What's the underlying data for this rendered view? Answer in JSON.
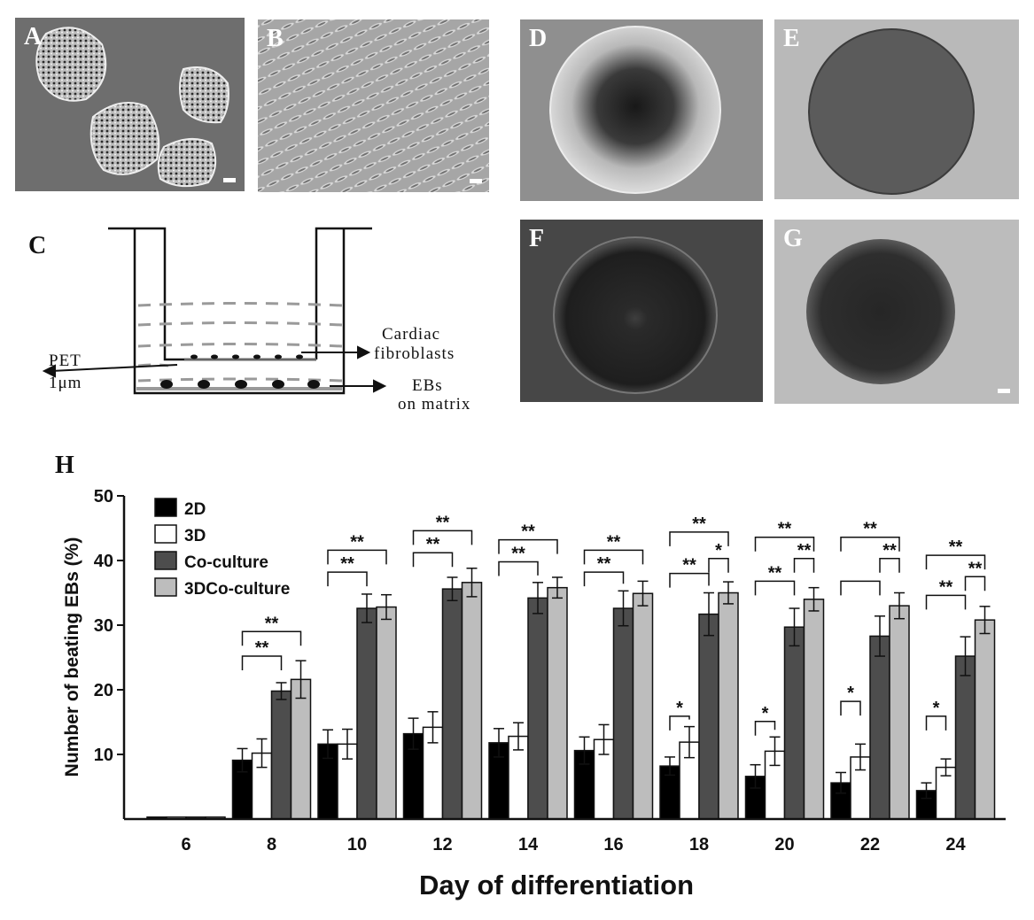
{
  "panels": {
    "a": {
      "label": "A"
    },
    "b": {
      "label": "B"
    },
    "c": {
      "label": "C"
    },
    "d": {
      "label": "D"
    },
    "e": {
      "label": "E"
    },
    "f": {
      "label": "F"
    },
    "g": {
      "label": "G"
    },
    "h": {
      "label": "H"
    }
  },
  "diagram": {
    "pet_label": "PET",
    "pore_label": "1μm",
    "fibroblast_line1": "Cardiac",
    "fibroblast_line2": "fibroblasts",
    "ebs_line1": "EBs",
    "ebs_line2": "on matrix"
  },
  "chart_data": {
    "type": "bar",
    "xlabel": "Day of differentiation",
    "ylabel": "Number of beating EBs (%)",
    "ylim": [
      0,
      50
    ],
    "yticks": [
      10,
      20,
      30,
      40,
      50
    ],
    "categories": [
      "6",
      "8",
      "10",
      "12",
      "14",
      "16",
      "18",
      "20",
      "22",
      "24"
    ],
    "legend_position": "top-left",
    "series": [
      {
        "name": "2D",
        "color": "#000000",
        "values": [
          0.3,
          9.1,
          11.6,
          13.2,
          11.8,
          10.6,
          8.2,
          6.6,
          5.6,
          4.4
        ],
        "errors": [
          0,
          1.8,
          2.2,
          2.4,
          2.2,
          2.1,
          1.4,
          1.8,
          1.6,
          1.2
        ]
      },
      {
        "name": "3D",
        "color": "#ffffff",
        "values": [
          0.3,
          10.2,
          11.6,
          14.2,
          12.8,
          12.3,
          11.9,
          10.5,
          9.6,
          8.0
        ],
        "errors": [
          0,
          2.2,
          2.3,
          2.4,
          2.1,
          2.3,
          2.4,
          2.2,
          2.0,
          1.3
        ]
      },
      {
        "name": "Co-culture",
        "color": "#4d4d4d",
        "values": [
          0.3,
          19.8,
          32.6,
          35.6,
          34.2,
          32.6,
          31.7,
          29.7,
          28.3,
          25.2
        ],
        "errors": [
          0,
          1.3,
          2.2,
          1.8,
          2.4,
          2.7,
          3.3,
          2.9,
          3.1,
          3.0
        ]
      },
      {
        "name": "3DCo-culture",
        "color": "#bdbdbd",
        "values": [
          0.3,
          21.6,
          32.8,
          36.6,
          35.8,
          34.9,
          35.0,
          34.0,
          33.0,
          30.8
        ],
        "errors": [
          0,
          2.9,
          1.9,
          2.2,
          1.6,
          1.9,
          1.7,
          1.8,
          2.0,
          2.1
        ]
      }
    ],
    "significance": [
      {
        "day": "8",
        "from": 0,
        "to": 2,
        "label": "**",
        "level": 25.2
      },
      {
        "day": "8",
        "from": 0,
        "to": 3,
        "label": "**",
        "level": 29.0
      },
      {
        "day": "10",
        "from": 0,
        "to": 2,
        "label": "**",
        "level": 38.2
      },
      {
        "day": "10",
        "from": 0,
        "to": 3,
        "label": "**",
        "level": 41.6
      },
      {
        "day": "12",
        "from": 0,
        "to": 2,
        "label": "**",
        "level": 41.2
      },
      {
        "day": "12",
        "from": 0,
        "to": 3,
        "label": "**",
        "level": 44.6
      },
      {
        "day": "14",
        "from": 0,
        "to": 2,
        "label": "**",
        "level": 39.8
      },
      {
        "day": "14",
        "from": 0,
        "to": 3,
        "label": "**",
        "level": 43.2
      },
      {
        "day": "16",
        "from": 0,
        "to": 2,
        "label": "**",
        "level": 38.2
      },
      {
        "day": "16",
        "from": 0,
        "to": 3,
        "label": "**",
        "level": 41.6
      },
      {
        "day": "18",
        "from": 0,
        "to": 1,
        "label": "*",
        "level": 15.9
      },
      {
        "day": "18",
        "from": 0,
        "to": 2,
        "label": "**",
        "level": 38.0
      },
      {
        "day": "18",
        "from": 2,
        "to": 3,
        "label": "*",
        "level": 40.3
      },
      {
        "day": "18",
        "from": 0,
        "to": 3,
        "label": "**",
        "level": 44.4
      },
      {
        "day": "20",
        "from": 0,
        "to": 1,
        "label": "*",
        "level": 15.1
      },
      {
        "day": "20",
        "from": 0,
        "to": 2,
        "label": "**",
        "level": 36.8
      },
      {
        "day": "20",
        "from": 2,
        "to": 3,
        "label": "**",
        "level": 40.3
      },
      {
        "day": "20",
        "from": 0,
        "to": 3,
        "label": "**",
        "level": 43.6
      },
      {
        "day": "22",
        "from": 0,
        "to": 1,
        "label": "*",
        "level": 18.2
      },
      {
        "day": "22",
        "from": 0,
        "to": 2,
        "label": "",
        "level": 36.8
      },
      {
        "day": "22",
        "from": 2,
        "to": 3,
        "label": "**",
        "level": 40.3
      },
      {
        "day": "22",
        "from": 0,
        "to": 3,
        "label": "**",
        "level": 43.6
      },
      {
        "day": "24",
        "from": 0,
        "to": 1,
        "label": "*",
        "level": 15.9
      },
      {
        "day": "24",
        "from": 0,
        "to": 2,
        "label": "**",
        "level": 34.6
      },
      {
        "day": "24",
        "from": 2,
        "to": 3,
        "label": "**",
        "level": 37.5
      },
      {
        "day": "24",
        "from": 0,
        "to": 3,
        "label": "**",
        "level": 40.8
      }
    ]
  }
}
